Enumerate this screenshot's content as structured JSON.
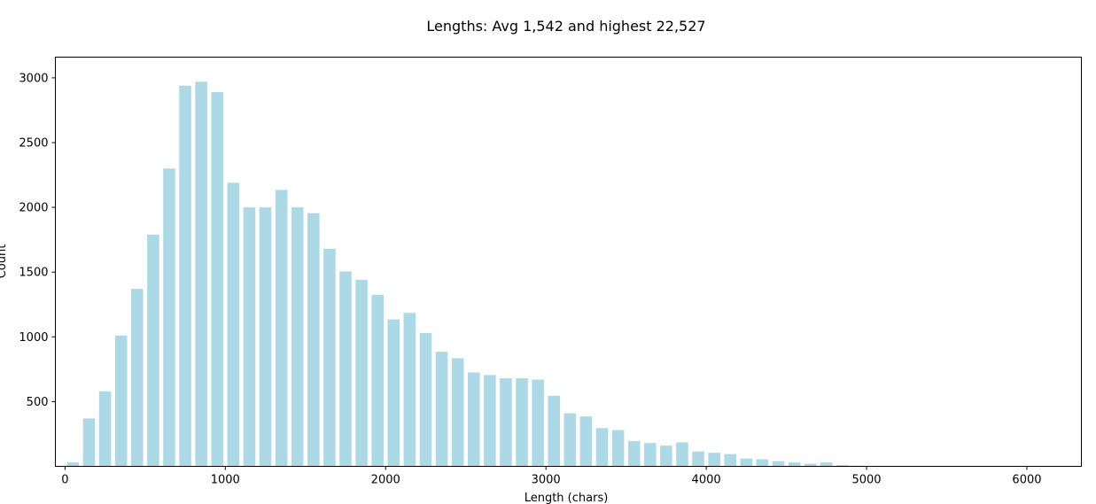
{
  "chart_data": {
    "type": "bar",
    "title": "Lengths: Avg 1,542 and highest 22,527",
    "xlabel": "Length (chars)",
    "ylabel": "Count",
    "xlim": [
      -60,
      6340
    ],
    "ylim": [
      0,
      3160
    ],
    "x_ticks": [
      {
        "value": 0,
        "label": "0"
      },
      {
        "value": 1000,
        "label": "1000"
      },
      {
        "value": 2000,
        "label": "2000"
      },
      {
        "value": 3000,
        "label": "3000"
      },
      {
        "value": 4000,
        "label": "4000"
      },
      {
        "value": 5000,
        "label": "5000"
      },
      {
        "value": 6000,
        "label": "6000"
      }
    ],
    "y_ticks": [
      {
        "value": 500,
        "label": "500"
      },
      {
        "value": 1000,
        "label": "1000"
      },
      {
        "value": 1500,
        "label": "1500"
      },
      {
        "value": 2000,
        "label": "2000"
      },
      {
        "value": 2500,
        "label": "2500"
      },
      {
        "value": 3000,
        "label": "3000"
      }
    ],
    "bin_width": 100,
    "bar_width": 75,
    "x": [
      50,
      150,
      250,
      350,
      450,
      550,
      650,
      750,
      850,
      950,
      1050,
      1150,
      1250,
      1350,
      1450,
      1550,
      1650,
      1750,
      1850,
      1950,
      2050,
      2150,
      2250,
      2350,
      2450,
      2550,
      2650,
      2750,
      2850,
      2950,
      3050,
      3150,
      3250,
      3350,
      3450,
      3550,
      3650,
      3750,
      3850,
      3950,
      4050,
      4150,
      4250,
      4350,
      4450,
      4550,
      4650,
      4750,
      4850,
      4950
    ],
    "values": [
      30,
      370,
      580,
      1010,
      1370,
      1790,
      2300,
      2940,
      2970,
      2890,
      2190,
      2000,
      2000,
      2135,
      2000,
      1955,
      1680,
      1505,
      1440,
      1325,
      1135,
      1185,
      1030,
      885,
      835,
      725,
      705,
      680,
      680,
      670,
      545,
      410,
      385,
      295,
      280,
      195,
      180,
      160,
      185,
      115,
      105,
      95,
      60,
      55,
      40,
      30,
      20,
      30,
      10,
      5
    ],
    "color": "#add8e6",
    "grid": false,
    "legend": "none"
  }
}
